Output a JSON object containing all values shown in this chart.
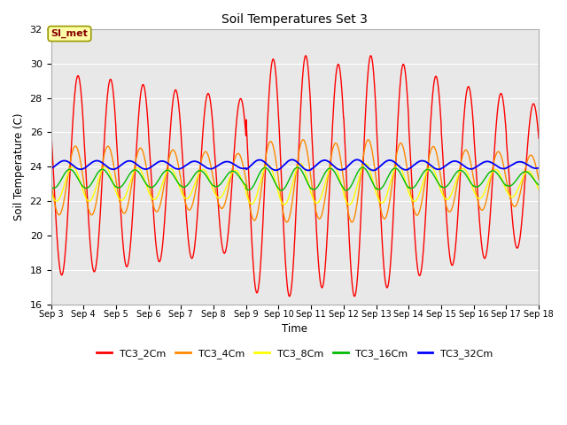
{
  "title": "Soil Temperatures Set 3",
  "xlabel": "Time",
  "ylabel": "Soil Temperature (C)",
  "ylim": [
    16,
    32
  ],
  "yticks": [
    16,
    18,
    20,
    22,
    24,
    26,
    28,
    30,
    32
  ],
  "x_labels": [
    "Sep 3",
    "Sep 4",
    "Sep 5",
    "Sep 6",
    "Sep 7",
    "Sep 8",
    "Sep 9",
    "Sep 10",
    "Sep 11",
    "Sep 12",
    "Sep 13",
    "Sep 14",
    "Sep 15",
    "Sep 16",
    "Sep 17",
    "Sep 18"
  ],
  "series_names": [
    "TC3_2Cm",
    "TC3_4Cm",
    "TC3_8Cm",
    "TC3_16Cm",
    "TC3_32Cm"
  ],
  "series_colors": [
    "#ff0000",
    "#ff8800",
    "#ffff00",
    "#00bb00",
    "#0000ff"
  ],
  "series_linewidths": [
    1.0,
    1.0,
    1.0,
    1.0,
    1.3
  ],
  "bg_color": "#e8e8e8",
  "fig_color": "#ffffff",
  "annotation_text": "SI_met",
  "annotation_bg": "#ffffaa",
  "annotation_border": "#999900",
  "n_days": 15,
  "points_per_day": 144,
  "base_2cm": 23.5,
  "base_4cm": 23.2,
  "base_8cm": 23.0,
  "base_16cm": 23.3,
  "base_32cm": 24.1,
  "amp_2cm": [
    5.8,
    5.6,
    5.3,
    5.0,
    4.8,
    4.5,
    6.8,
    7.0,
    6.5,
    7.0,
    6.5,
    5.8,
    5.2,
    4.8,
    4.2
  ],
  "amp_4cm": [
    2.0,
    2.0,
    1.9,
    1.8,
    1.7,
    1.6,
    2.3,
    2.4,
    2.2,
    2.4,
    2.2,
    2.0,
    1.8,
    1.7,
    1.5
  ],
  "amp_8cm": [
    1.0,
    1.0,
    0.95,
    0.9,
    0.85,
    0.8,
    1.15,
    1.2,
    1.1,
    1.2,
    1.1,
    1.0,
    0.9,
    0.85,
    0.75
  ],
  "amp_16cm": [
    0.55,
    0.55,
    0.52,
    0.5,
    0.48,
    0.45,
    0.65,
    0.67,
    0.62,
    0.67,
    0.62,
    0.55,
    0.5,
    0.47,
    0.42
  ],
  "amp_32cm": [
    0.25,
    0.25,
    0.24,
    0.23,
    0.22,
    0.2,
    0.3,
    0.31,
    0.28,
    0.31,
    0.28,
    0.25,
    0.23,
    0.21,
    0.19
  ],
  "drift_2cm": [
    0.0,
    -0.05,
    -0.05,
    -0.05,
    -0.05,
    -0.05,
    0.0,
    0.0,
    0.0,
    0.0,
    0.0,
    0.0,
    0.0,
    0.0,
    0.0
  ],
  "drift_4cm": [
    0.0,
    -0.03,
    -0.03,
    -0.03,
    -0.03,
    -0.03,
    0.0,
    0.0,
    0.0,
    0.0,
    0.0,
    0.0,
    0.0,
    0.0,
    0.0
  ],
  "drift_8cm": [
    0.0,
    -0.02,
    -0.02,
    -0.02,
    -0.02,
    -0.02,
    0.0,
    0.0,
    0.0,
    0.0,
    0.0,
    0.0,
    0.0,
    0.0,
    0.0
  ],
  "drift_16cm": [
    0.0,
    -0.01,
    -0.01,
    -0.01,
    -0.01,
    -0.01,
    0.0,
    0.0,
    0.0,
    0.0,
    0.0,
    0.0,
    0.0,
    0.0,
    0.0
  ],
  "drift_32cm": [
    0.0,
    -0.005,
    -0.005,
    -0.005,
    -0.005,
    -0.005,
    0.0,
    0.0,
    0.0,
    0.0,
    0.0,
    0.0,
    0.0,
    0.0,
    0.0
  ],
  "phase_2cm": 0.0,
  "phase_4cm": 0.08,
  "phase_8cm": 0.16,
  "phase_16cm": 0.25,
  "phase_32cm": 0.42,
  "global_drift": [
    -0.05,
    -0.08,
    -0.08,
    -0.08,
    -0.06,
    -0.04,
    -0.02,
    0.0,
    0.0,
    0.0,
    0.02,
    0.02,
    0.01,
    0.0,
    0.0
  ]
}
